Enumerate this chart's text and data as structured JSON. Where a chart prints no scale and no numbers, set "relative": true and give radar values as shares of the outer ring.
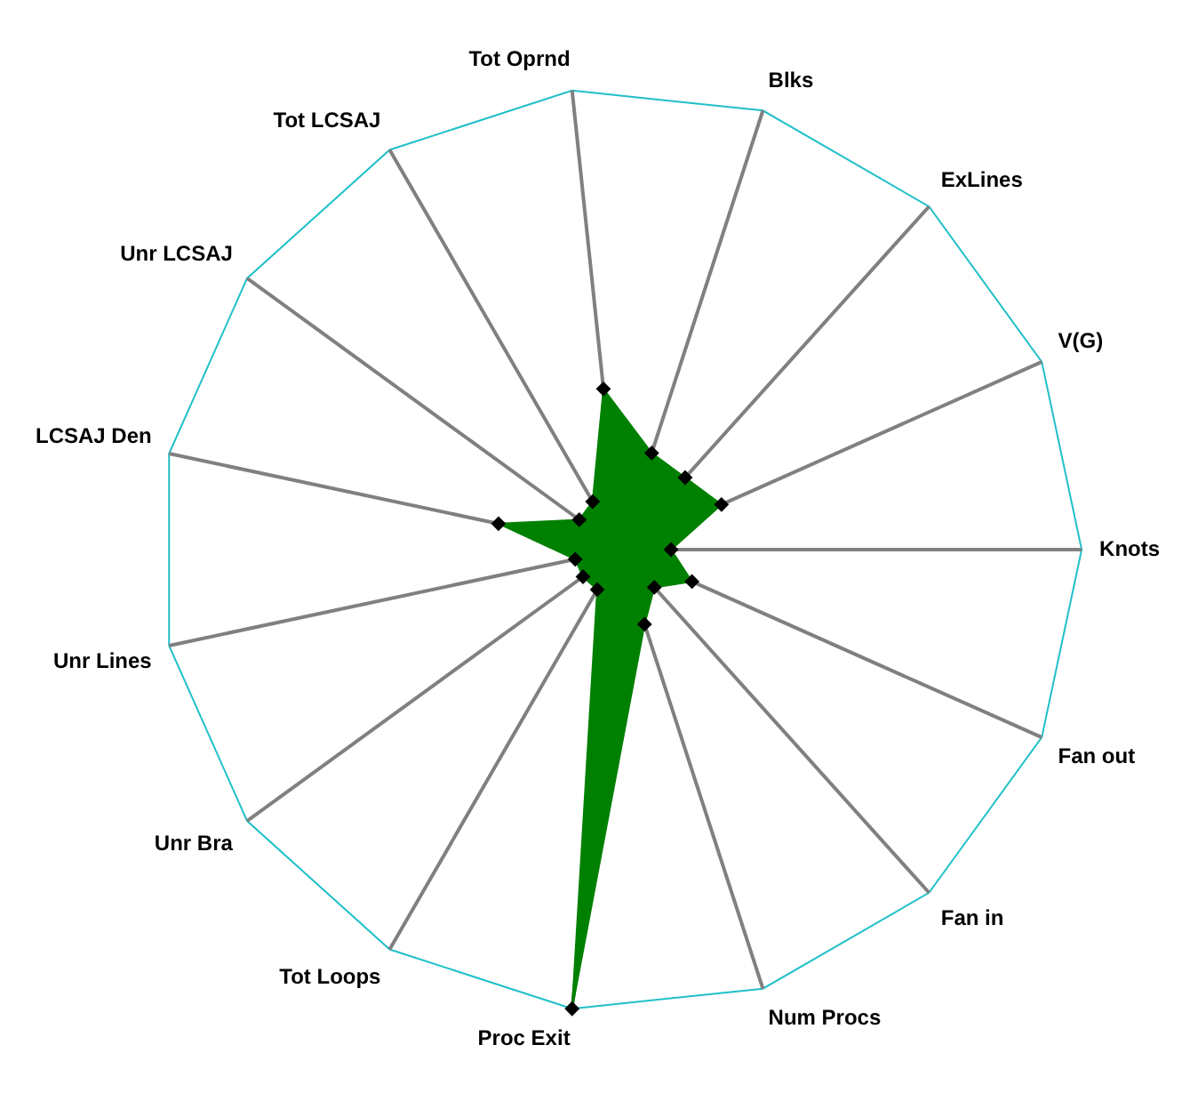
{
  "chart_data": {
    "type": "radar",
    "relative": true,
    "categories": [
      "Tot Oprnd",
      "Blks",
      "ExLines",
      "V(G)",
      "Knots",
      "Fan out",
      "Fan in",
      "Num Procs",
      "Proc Exit",
      "Tot Loops",
      "Unr Bra",
      "Unr Lines",
      "LCSAJ Den",
      "Unr LCSAJ",
      "Tot LCSAJ"
    ],
    "series": [
      {
        "color": "#008000",
        "values": [
          0.35,
          0.22,
          0.21,
          0.24,
          0.11,
          0.17,
          0.11,
          0.17,
          1,
          0.1,
          0.1,
          0.1,
          0.27,
          0.11,
          0.12
        ]
      }
    ],
    "grid": true,
    "legend": false,
    "marker": "diamond"
  }
}
